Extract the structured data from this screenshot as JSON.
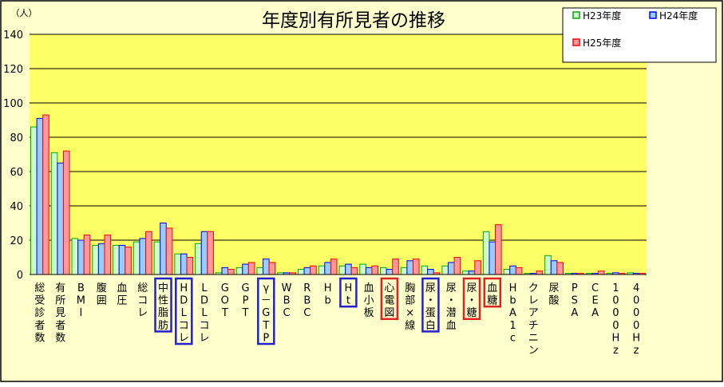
{
  "chart_data": {
    "type": "bar",
    "title": "年度別有所見者の推移",
    "y_unit": "（人）",
    "ylim": [
      0,
      140
    ],
    "yticks": [
      0,
      20,
      40,
      60,
      80,
      100,
      120,
      140
    ],
    "grid": true,
    "legend_position": "top-right",
    "categories": [
      "総受診者数",
      "有所見者数",
      "BMI",
      "腹囲",
      "血圧",
      "総コレ",
      "中性脂肪",
      "HDLコレ",
      "LDLコレ",
      "GOT",
      "GPT",
      "γ－GTP",
      "WBC",
      "RBC",
      "Hb",
      "Ht",
      "血小板",
      "心電図",
      "胸部×線",
      "尿・蛋白",
      "尿・潜血",
      "尿・糖",
      "血糖",
      "HbA1c",
      "クレアチニン",
      "尿酸",
      "PSA",
      "CEA",
      "1000Hz",
      "4000Hz"
    ],
    "series": [
      {
        "name": "H23年度",
        "values": [
          86,
          71,
          21,
          17,
          17,
          19,
          19,
          12,
          18,
          1,
          4,
          4,
          1,
          3,
          5,
          5,
          6,
          4,
          4,
          5,
          5,
          2,
          25,
          3,
          0,
          11,
          0,
          0,
          0,
          1
        ]
      },
      {
        "name": "H24年度",
        "values": [
          91,
          65,
          20,
          18,
          17,
          21,
          30,
          12,
          25,
          4,
          6,
          9,
          1,
          4,
          7,
          6,
          4,
          3,
          8,
          3,
          7,
          2,
          19,
          5,
          0,
          8,
          0,
          0,
          1,
          0
        ]
      },
      {
        "name": "H25年度",
        "values": [
          93,
          72,
          23,
          23,
          16,
          25,
          27,
          10,
          25,
          3,
          7,
          7,
          1,
          5,
          9,
          4,
          5,
          9,
          9,
          1,
          10,
          8,
          29,
          4,
          2,
          7,
          0,
          2,
          0,
          0
        ]
      }
    ],
    "highlighted_categories": [
      {
        "category": "中性脂肪",
        "color": "#2222cc"
      },
      {
        "category": "HDLコレ",
        "color": "#2222cc"
      },
      {
        "category": "γ－GTP",
        "color": "#2222cc"
      },
      {
        "category": "Ht",
        "color": "#2222cc"
      },
      {
        "category": "心電図",
        "color": "#dd2222"
      },
      {
        "category": "尿・蛋白",
        "color": "#2222cc"
      },
      {
        "category": "尿・糖",
        "color": "#dd2222"
      },
      {
        "category": "血糖",
        "color": "#dd2222"
      }
    ]
  },
  "colors": {
    "plot_bg": "#ffff66",
    "series_fill": [
      "#ccffcc",
      "#99ccff",
      "#ff9999"
    ],
    "series_stroke": [
      "#00aa00",
      "#0000ff",
      "#ff0000"
    ]
  }
}
